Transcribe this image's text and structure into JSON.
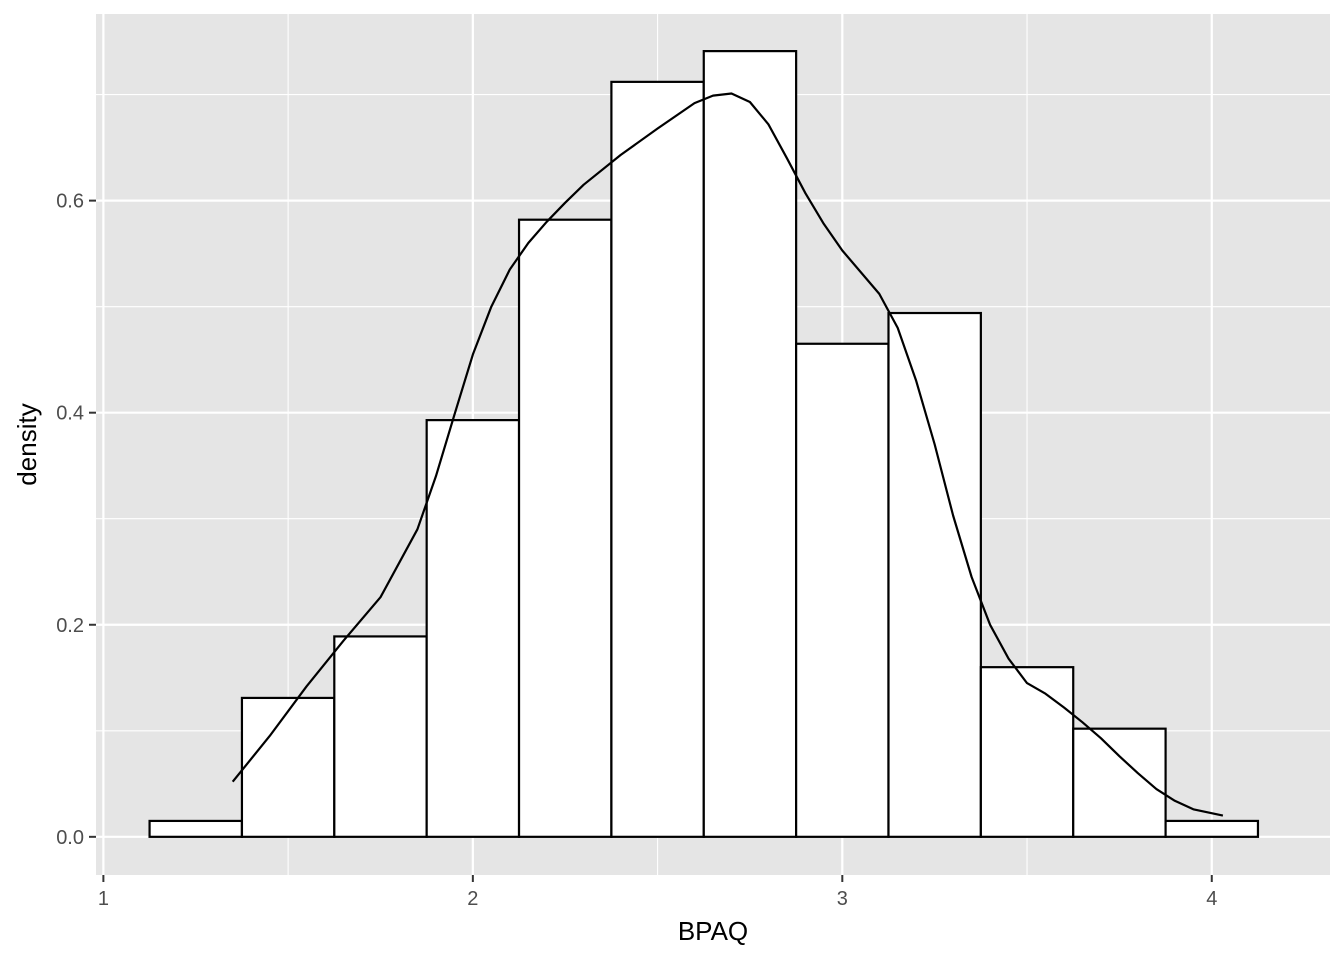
{
  "chart_data": {
    "type": "bar",
    "subtype": "histogram-with-density",
    "title": "",
    "xlabel": "BPAQ",
    "ylabel": "density",
    "xlim": [
      0.98,
      4.32
    ],
    "ylim": [
      -0.036,
      0.776
    ],
    "x_ticks": [
      1,
      2,
      3,
      4
    ],
    "x_tick_labels": [
      "1",
      "2",
      "3",
      "4"
    ],
    "x_minor_breaks": [
      1.5,
      2.5,
      3.5
    ],
    "y_ticks": [
      0.0,
      0.2,
      0.4,
      0.6
    ],
    "y_tick_labels": [
      "0.0",
      "0.2",
      "0.4",
      "0.6"
    ],
    "y_minor_breaks": [
      0.1,
      0.3,
      0.5,
      0.7
    ],
    "grid": true,
    "panel_background": "#e5e5e5",
    "grid_color": "#ffffff",
    "bar_fill": "#ffffff",
    "bar_outline": "#000000",
    "line_color": "#000000",
    "bins": [
      {
        "x0": 1.125,
        "x1": 1.375,
        "density": 0.015
      },
      {
        "x0": 1.375,
        "x1": 1.625,
        "density": 0.131
      },
      {
        "x0": 1.625,
        "x1": 1.875,
        "density": 0.189
      },
      {
        "x0": 1.875,
        "x1": 2.125,
        "density": 0.393
      },
      {
        "x0": 2.125,
        "x1": 2.375,
        "density": 0.582
      },
      {
        "x0": 2.375,
        "x1": 2.625,
        "density": 0.712
      },
      {
        "x0": 2.625,
        "x1": 2.875,
        "density": 0.741
      },
      {
        "x0": 2.875,
        "x1": 3.125,
        "density": 0.465
      },
      {
        "x0": 3.125,
        "x1": 3.375,
        "density": 0.494
      },
      {
        "x0": 3.375,
        "x1": 3.625,
        "density": 0.16
      },
      {
        "x0": 3.625,
        "x1": 3.875,
        "density": 0.102
      },
      {
        "x0": 3.875,
        "x1": 4.125,
        "density": 0.015
      }
    ],
    "density_curve": {
      "x": [
        1.35,
        1.45,
        1.55,
        1.65,
        1.75,
        1.85,
        1.9,
        1.95,
        2.0,
        2.05,
        2.1,
        2.15,
        2.2,
        2.25,
        2.3,
        2.4,
        2.5,
        2.6,
        2.65,
        2.7,
        2.75,
        2.8,
        2.85,
        2.9,
        2.95,
        3.0,
        3.1,
        3.15,
        3.2,
        3.25,
        3.3,
        3.35,
        3.4,
        3.45,
        3.5,
        3.55,
        3.6,
        3.65,
        3.7,
        3.75,
        3.8,
        3.85,
        3.9,
        3.95,
        4.03
      ],
      "y": [
        0.052,
        0.095,
        0.142,
        0.185,
        0.226,
        0.29,
        0.34,
        0.398,
        0.455,
        0.5,
        0.535,
        0.56,
        0.58,
        0.598,
        0.615,
        0.643,
        0.668,
        0.692,
        0.699,
        0.701,
        0.693,
        0.672,
        0.64,
        0.607,
        0.578,
        0.553,
        0.512,
        0.48,
        0.43,
        0.37,
        0.303,
        0.245,
        0.2,
        0.168,
        0.145,
        0.135,
        0.122,
        0.108,
        0.093,
        0.076,
        0.06,
        0.045,
        0.034,
        0.026,
        0.02
      ]
    }
  }
}
